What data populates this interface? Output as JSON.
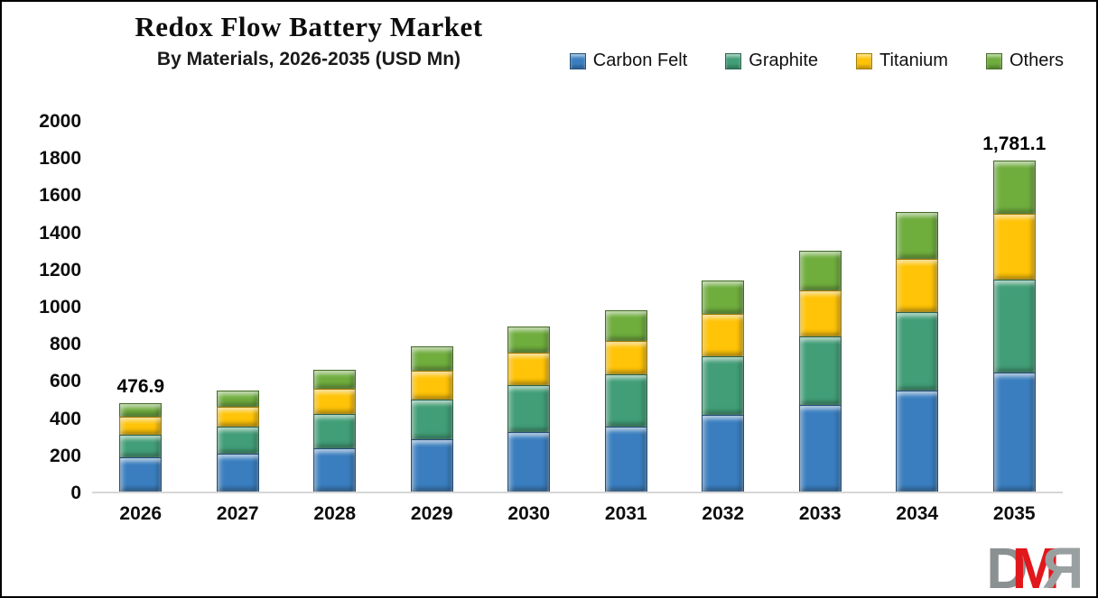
{
  "header": {
    "title": "Redox Flow Battery Market",
    "subtitle": "By Materials, 2026-2035 (USD Mn)"
  },
  "legend": [
    {
      "label": "Carbon Felt",
      "color": "#3A7EBF"
    },
    {
      "label": "Graphite",
      "color": "#419E77"
    },
    {
      "label": "Titanium",
      "color": "#FFC408"
    },
    {
      "label": "Others",
      "color": "#6FAD3D"
    }
  ],
  "chart_data": {
    "type": "bar",
    "stacked": true,
    "title": "Redox Flow Battery Market",
    "subtitle": "By Materials, 2026-2035 (USD Mn)",
    "unit": "USD Mn",
    "categories": [
      "2026",
      "2027",
      "2028",
      "2029",
      "2030",
      "2031",
      "2032",
      "2033",
      "2034",
      "2035"
    ],
    "series": [
      {
        "name": "Carbon Felt",
        "color": "#3A7EBF",
        "values": [
          186,
          205,
          232,
          283,
          319,
          351,
          413,
          465,
          545,
          642
        ]
      },
      {
        "name": "Graphite",
        "color": "#419E77",
        "values": [
          121,
          143,
          184,
          214,
          252,
          280,
          315,
          369,
          421,
          499
        ]
      },
      {
        "name": "Titanium",
        "color": "#FFC408",
        "values": [
          97,
          108,
          137,
          154,
          176,
          181,
          227,
          248,
          288,
          353
        ]
      },
      {
        "name": "Others",
        "color": "#6FAD3D",
        "values": [
          72.9,
          89,
          104,
          129,
          143,
          162,
          181,
          213,
          251,
          287.1
        ]
      }
    ],
    "totals": [
      476.9,
      545,
      657,
      780,
      890,
      974,
      1136,
      1295,
      1505,
      1781.1
    ],
    "bar_labels": [
      "476.9",
      "",
      "",
      "",
      "",
      "",
      "",
      "",
      "",
      "1,781.1"
    ],
    "ylim": [
      0,
      2000
    ],
    "yticks": [
      "0",
      "200",
      "400",
      "600",
      "800",
      "1000",
      "1200",
      "1400",
      "1600",
      "1800",
      "2000"
    ],
    "grid": false,
    "legend_position": "top-right",
    "axis_line_color": "#d6d6d6"
  },
  "watermark": {
    "letters": [
      {
        "char": "D",
        "color": "#8b9091"
      },
      {
        "char": "M",
        "color": "#e1171c"
      },
      {
        "char": "R",
        "color": "#9aa0a0",
        "mirrored": true
      }
    ]
  }
}
